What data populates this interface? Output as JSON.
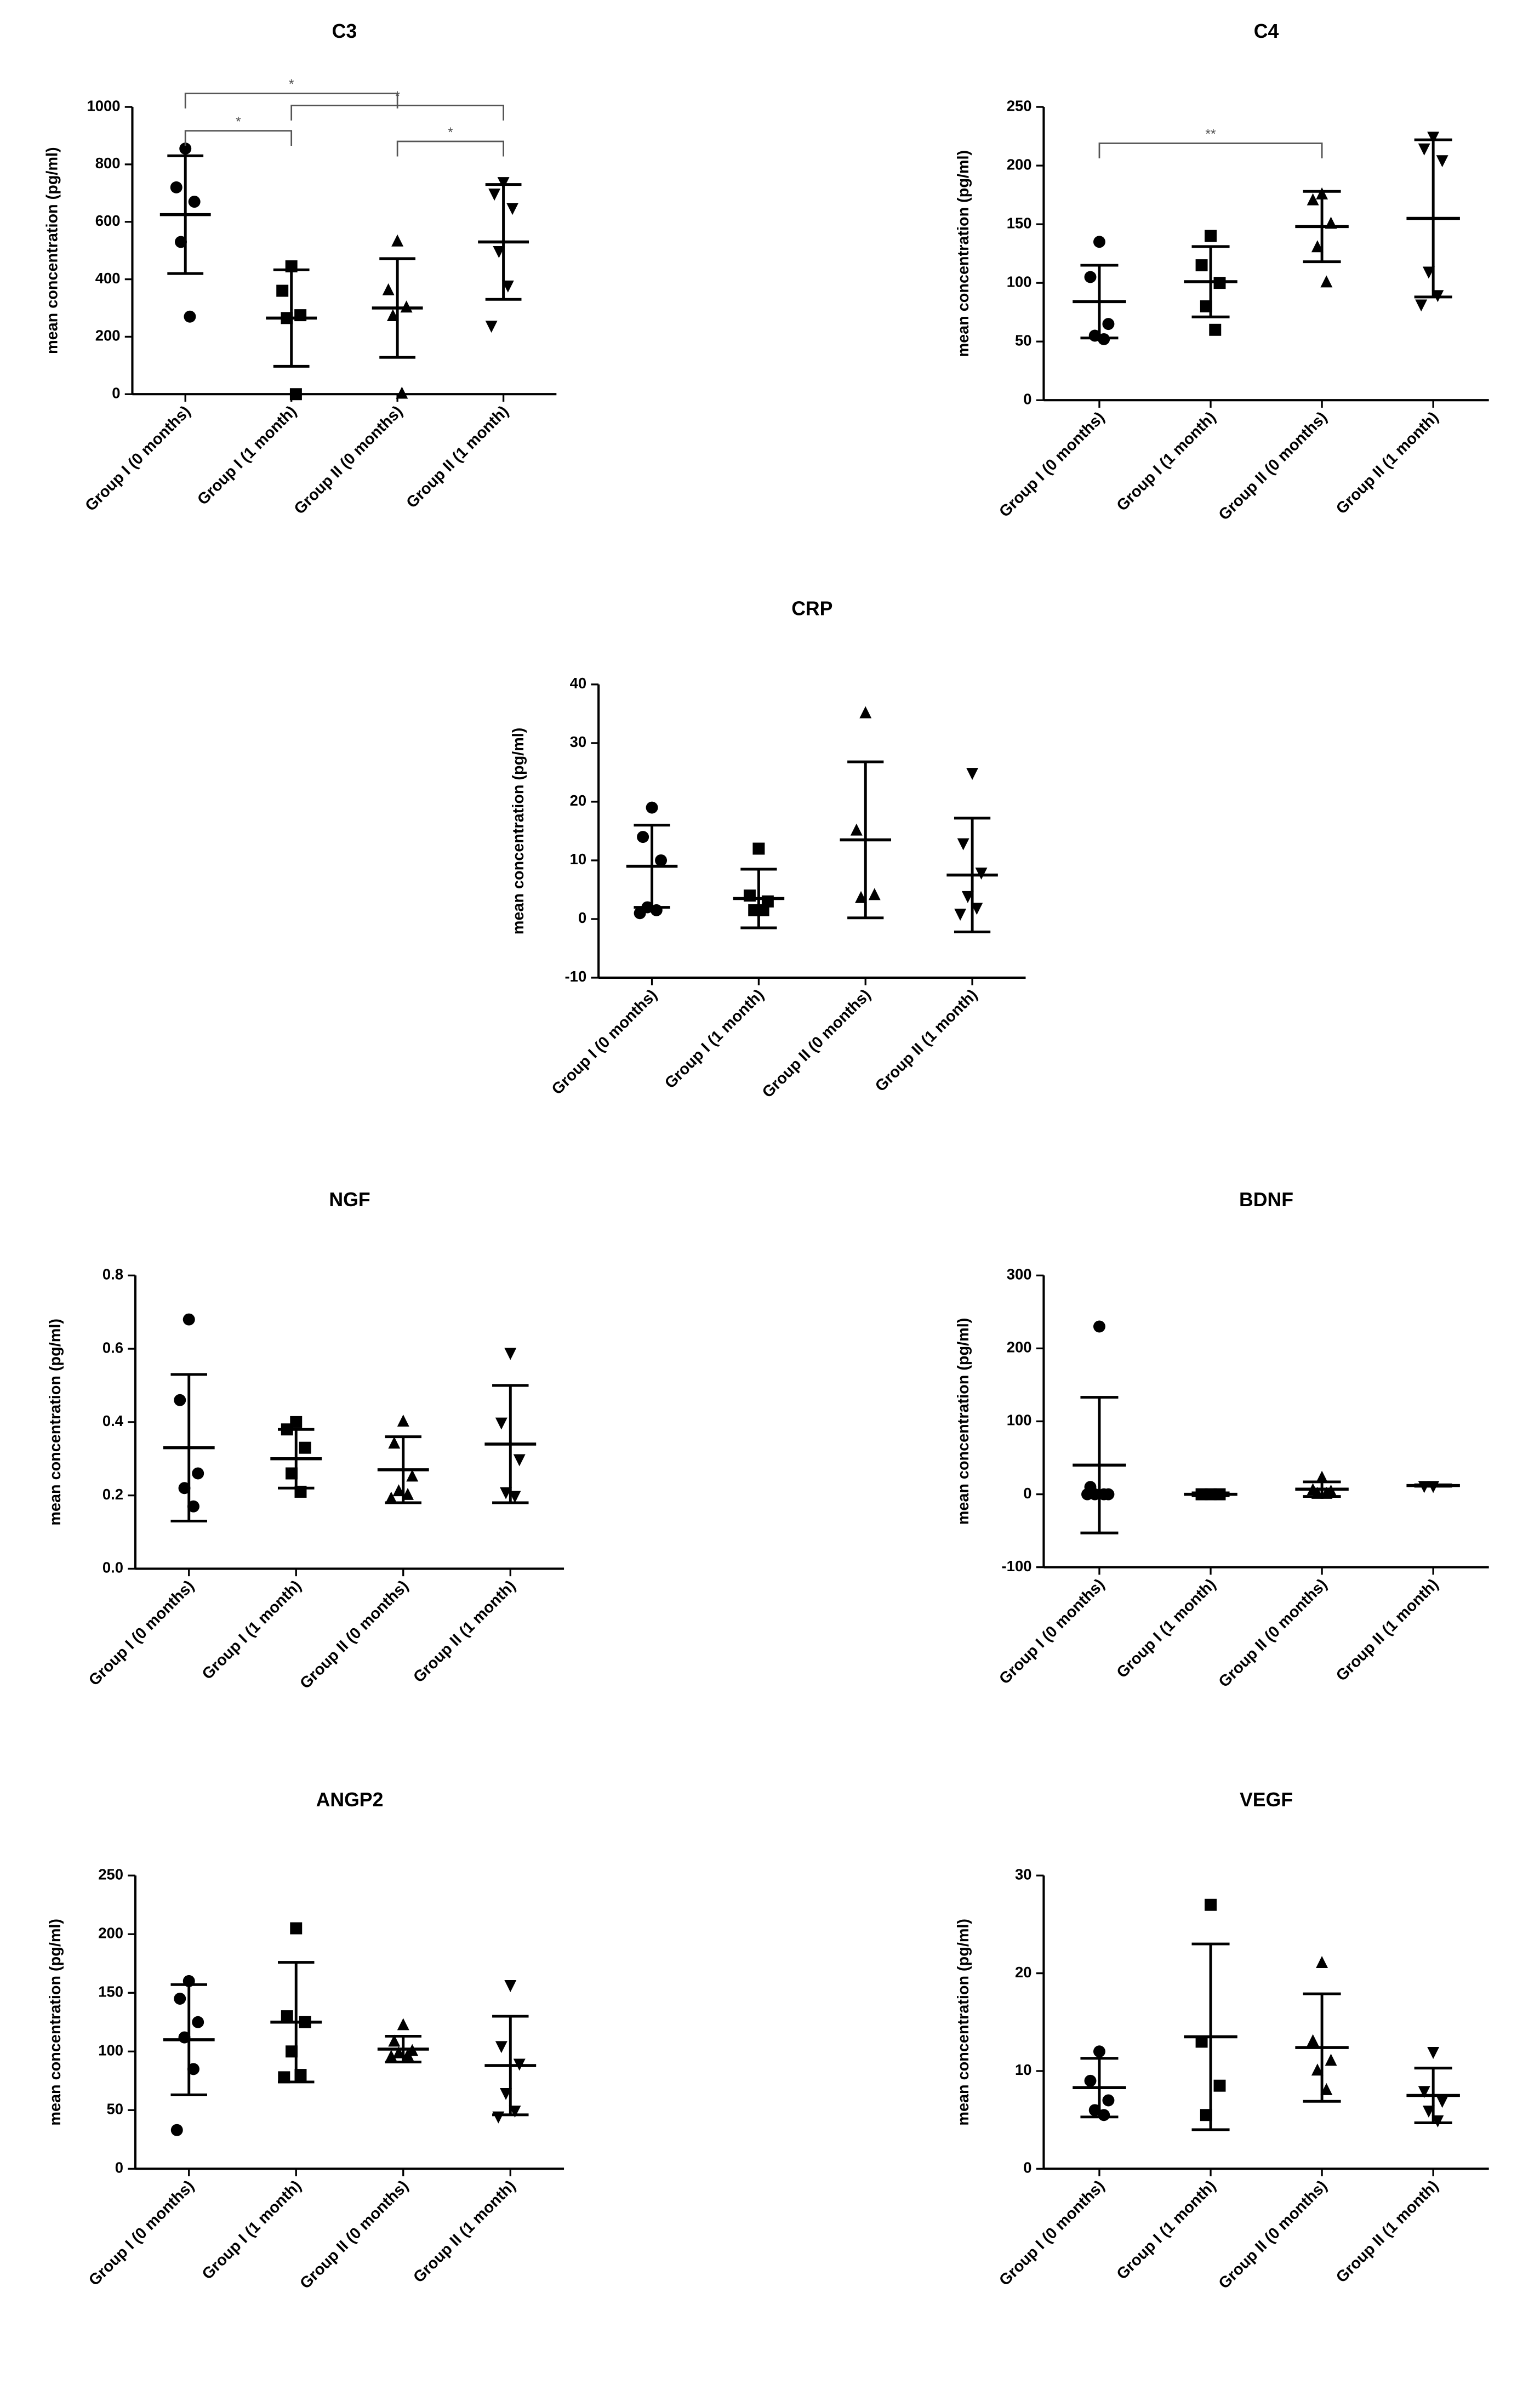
{
  "chart_data": [
    {
      "type": "dot",
      "title": "C3",
      "y_label": "mean concentration (pg/ml)",
      "categories": [
        "Group I (0 months)",
        "Group I (1 month)",
        "Group II (0 months)",
        "Group II (1 month)"
      ],
      "markers": [
        "circle",
        "square",
        "triangle",
        "triangle-down"
      ],
      "color": "#000000",
      "ylim": [
        0,
        1000
      ],
      "yticks": [
        0,
        200,
        400,
        600,
        800,
        1000
      ],
      "groups": [
        {
          "points": [
            855,
            720,
            670,
            530,
            270
          ],
          "mean": 625,
          "sd": 205
        },
        {
          "points": [
            445,
            360,
            275,
            265,
            0
          ],
          "mean": 265,
          "sd": 168
        },
        {
          "points": [
            530,
            360,
            300,
            270,
            0
          ],
          "mean": 300,
          "sd": 172
        },
        {
          "points": [
            740,
            700,
            650,
            500,
            380,
            240
          ],
          "mean": 530,
          "sd": 200
        }
      ],
      "significance": [
        {
          "groups": [
            0,
            2
          ],
          "y": 1047,
          "label": "*"
        },
        {
          "groups": [
            1,
            3
          ],
          "y": 1005,
          "label": "*"
        },
        {
          "groups": [
            0,
            1
          ],
          "y": 917,
          "label": "*"
        },
        {
          "groups": [
            2,
            3
          ],
          "y": 880,
          "label": "*"
        }
      ]
    },
    {
      "type": "dot",
      "title": "C4",
      "y_label": "mean concentration (pg/ml)",
      "categories": [
        "Group I (0 months)",
        "Group I (1 month)",
        "Group II (0 months)",
        "Group II (1 month)"
      ],
      "markers": [
        "circle",
        "square",
        "triangle",
        "triangle-down"
      ],
      "color": "#000000",
      "ylim": [
        0,
        250
      ],
      "yticks": [
        0,
        50,
        100,
        150,
        200,
        250
      ],
      "groups": [
        {
          "points": [
            135,
            105,
            65,
            55,
            52
          ],
          "mean": 84,
          "sd": 31
        },
        {
          "points": [
            140,
            115,
            100,
            80,
            60
          ],
          "mean": 101,
          "sd": 30
        },
        {
          "points": [
            175,
            170,
            150,
            130,
            100
          ],
          "mean": 148,
          "sd": 30
        },
        {
          "points": [
            225,
            215,
            205,
            110,
            90,
            82
          ],
          "mean": 155,
          "sd": 67
        }
      ],
      "significance": [
        {
          "groups": [
            0,
            2
          ],
          "y": 219,
          "label": "**"
        }
      ]
    },
    {
      "type": "dot",
      "title": "CRP",
      "y_label": "mean concentration (pg/ml)",
      "categories": [
        "Group I (0 months)",
        "Group I (1 month)",
        "Group II (0 months)",
        "Group II (1 month)"
      ],
      "markers": [
        "circle",
        "square",
        "triangle",
        "triangle-down"
      ],
      "color": "#000000",
      "ylim": [
        -10,
        40
      ],
      "yticks": [
        -10,
        0,
        10,
        20,
        30,
        40
      ],
      "groups": [
        {
          "points": [
            19,
            14,
            10,
            2,
            1.5,
            1
          ],
          "mean": 9,
          "sd": 7
        },
        {
          "points": [
            12,
            4,
            3,
            1.5,
            1.5
          ],
          "mean": 3.5,
          "sd": 5
        },
        {
          "points": [
            35,
            15,
            4,
            3.5
          ],
          "mean": 13.5,
          "sd": 13.3
        },
        {
          "points": [
            25,
            13,
            8,
            4,
            2,
            1
          ],
          "mean": 7.5,
          "sd": 9.7
        }
      ]
    },
    {
      "type": "dot",
      "title": "NGF",
      "y_label": "mean concentration (pg/ml)",
      "categories": [
        "Group I (0 months)",
        "Group I (1 month)",
        "Group II (0 months)",
        "Group II (1 month)"
      ],
      "markers": [
        "circle",
        "square",
        "triangle",
        "triangle-down"
      ],
      "color": "#000000",
      "ylim": [
        0,
        0.8
      ],
      "yticks": [
        {
          "value": 0,
          "label": "0.0"
        },
        0.2,
        0.4,
        0.6,
        0.8
      ],
      "groups": [
        {
          "points": [
            0.68,
            0.46,
            0.26,
            0.22,
            0.17
          ],
          "mean": 0.33,
          "sd": 0.2
        },
        {
          "points": [
            0.4,
            0.38,
            0.33,
            0.26,
            0.21
          ],
          "mean": 0.3,
          "sd": 0.08
        },
        {
          "points": [
            0.4,
            0.34,
            0.25,
            0.21,
            0.2,
            0.19
          ],
          "mean": 0.27,
          "sd": 0.09
        },
        {
          "points": [
            0.59,
            0.4,
            0.3,
            0.21,
            0.2
          ],
          "mean": 0.34,
          "sd": 0.16
        }
      ]
    },
    {
      "type": "dot",
      "title": "BDNF",
      "y_label": "mean concentration (pg/ml)",
      "categories": [
        "Group I (0 months)",
        "Group I (1 month)",
        "Group II (0 months)",
        "Group II (1 month)"
      ],
      "markers": [
        "circle",
        "square",
        "triangle",
        "triangle-down"
      ],
      "color": "#000000",
      "ylim": [
        -100,
        300
      ],
      "yticks": [
        -100,
        0,
        100,
        200,
        300
      ],
      "groups": [
        {
          "points": [
            230,
            10,
            0,
            0,
            0,
            0
          ],
          "mean": 40,
          "sd": 93
        },
        {
          "points": [
            0,
            0,
            0
          ],
          "mean": 0,
          "sd": 2
        },
        {
          "points": [
            22,
            5,
            3,
            0,
            0
          ],
          "mean": 7,
          "sd": 10
        },
        {
          "points": [
            12,
            12
          ],
          "mean": 12,
          "sd": 1
        }
      ]
    },
    {
      "type": "dot",
      "title": "ANGP2",
      "y_label": "mean concentration (pg/ml)",
      "categories": [
        "Group I (0 months)",
        "Group I (1 month)",
        "Group II (0 months)",
        "Group II (1 month)"
      ],
      "markers": [
        "circle",
        "square",
        "triangle",
        "triangle-down"
      ],
      "color": "#000000",
      "ylim": [
        0,
        250
      ],
      "yticks": [
        0,
        50,
        100,
        150,
        200,
        250
      ],
      "groups": [
        {
          "points": [
            160,
            145,
            125,
            112,
            85,
            33
          ],
          "mean": 110,
          "sd": 47
        },
        {
          "points": [
            205,
            130,
            125,
            100,
            80,
            78
          ],
          "mean": 125,
          "sd": 51
        },
        {
          "points": [
            122,
            108,
            100,
            98,
            96,
            95
          ],
          "mean": 102,
          "sd": 11
        },
        {
          "points": [
            157,
            105,
            90,
            65,
            50,
            45
          ],
          "mean": 88,
          "sd": 42
        }
      ]
    },
    {
      "type": "dot",
      "title": "VEGF",
      "y_label": "mean concentration (pg/ml)",
      "categories": [
        "Group I (0 months)",
        "Group I (1 month)",
        "Group II (0 months)",
        "Group II (1 month)"
      ],
      "markers": [
        "circle",
        "square",
        "triangle",
        "triangle-down"
      ],
      "color": "#000000",
      "ylim": [
        0,
        30
      ],
      "yticks": [
        0,
        10,
        20,
        30
      ],
      "groups": [
        {
          "points": [
            12,
            9,
            7,
            6,
            5.5
          ],
          "mean": 8.3,
          "sd": 3
        },
        {
          "points": [
            27,
            13,
            8.5,
            5.5
          ],
          "mean": 13.5,
          "sd": 9.5
        },
        {
          "points": [
            21,
            13,
            11,
            10,
            8
          ],
          "mean": 12.4,
          "sd": 5.5
        },
        {
          "points": [
            12,
            8,
            7,
            6,
            5
          ],
          "mean": 7.5,
          "sd": 2.8
        }
      ]
    }
  ]
}
